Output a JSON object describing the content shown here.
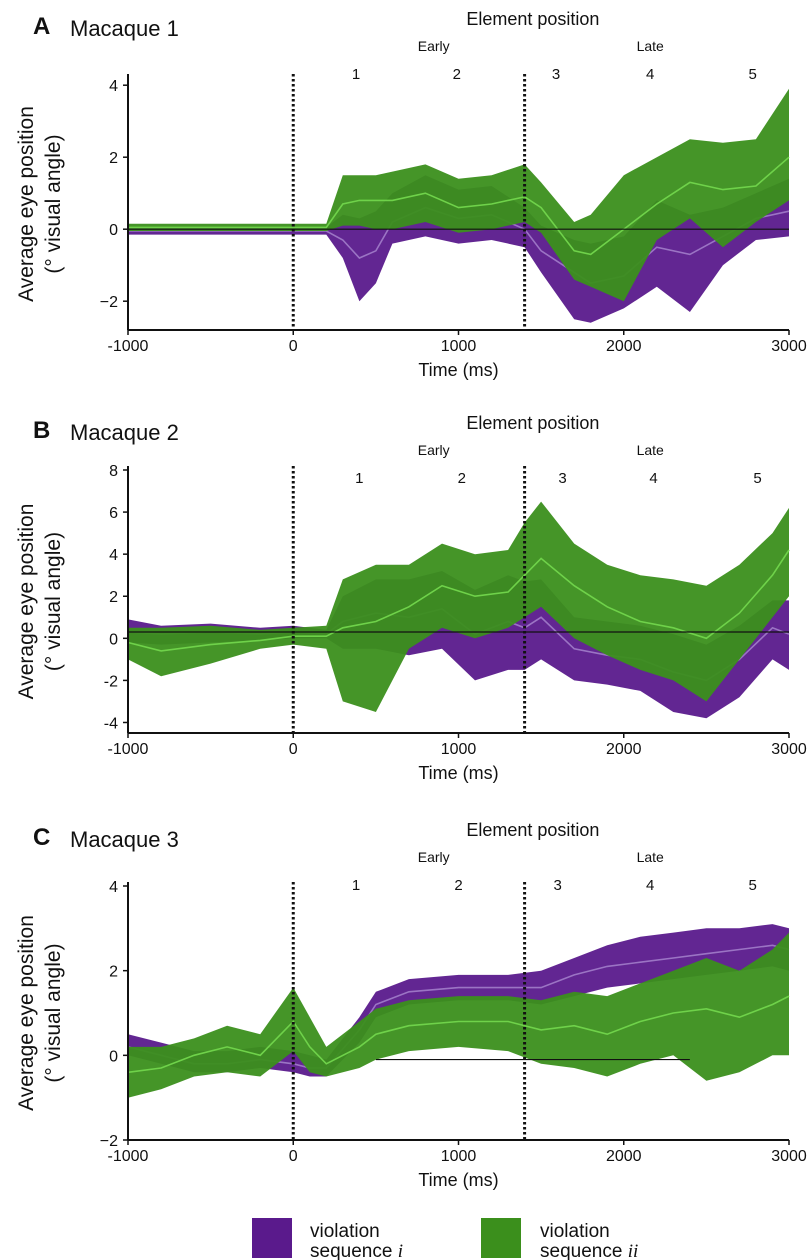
{
  "colors": {
    "violation_i_band": "#5a1a8c",
    "violation_i_line": "#9b74c4",
    "violation_ii_band": "#3b8f1c",
    "violation_ii_line": "#6fd24a",
    "axis": "#111111"
  },
  "legend": {
    "items": [
      {
        "label_line1": "violation",
        "label_line2_prefix": "sequence ",
        "label_line2_italic": "i",
        "color_key": "violation_i_band"
      },
      {
        "label_line1": "violation",
        "label_line2_prefix": "sequence ",
        "label_line2_italic": "ii",
        "color_key": "violation_ii_band"
      }
    ]
  },
  "chart_data": [
    {
      "type": "area",
      "panel_letter": "A",
      "title": "Macaque 1",
      "xlabel": "Time (ms)",
      "ylabel_line1": "Average eye position",
      "ylabel_line2": "(° visual angle)",
      "xlim": [
        -1000,
        3000
      ],
      "ylim": [
        -2.8,
        4.2
      ],
      "xticks": [
        -1000,
        0,
        1000,
        2000,
        3000
      ],
      "yticks": [
        4,
        2,
        0,
        -2
      ],
      "ytick_labels": [
        "4",
        "2",
        "0",
        "−2"
      ],
      "element_position_title": "Element position",
      "early_label": "Early",
      "late_label": "Late",
      "element_numbers": [
        "1",
        "2",
        "3",
        "4",
        "5"
      ],
      "element_centers_ms": [
        380,
        990,
        1590,
        2160,
        2780
      ],
      "dotted_lines_ms": [
        0,
        1400
      ],
      "baseline_y": 0,
      "series": [
        {
          "name": "violation sequence i",
          "x": [
            -1000,
            -500,
            0,
            200,
            300,
            400,
            500,
            600,
            800,
            1000,
            1200,
            1400,
            1500,
            1700,
            1800,
            2000,
            2200,
            2400,
            2600,
            2800,
            3000
          ],
          "mean": [
            -0.05,
            -0.05,
            -0.05,
            -0.05,
            -0.3,
            -0.8,
            -0.6,
            0.2,
            0.6,
            0.3,
            0.4,
            0.0,
            -0.6,
            -1.2,
            -1.5,
            -1.3,
            -0.5,
            -0.7,
            -0.2,
            0.3,
            0.5
          ],
          "lower": [
            -0.15,
            -0.15,
            -0.15,
            -0.15,
            -0.8,
            -2.0,
            -1.5,
            -0.4,
            -0.2,
            -0.4,
            -0.3,
            -0.5,
            -1.2,
            -2.5,
            -2.6,
            -2.2,
            -1.6,
            -2.3,
            -1.0,
            -0.3,
            -0.2
          ],
          "upper": [
            0.05,
            0.05,
            0.05,
            0.05,
            0.4,
            0.3,
            0.5,
            1.0,
            1.5,
            1.1,
            1.2,
            0.6,
            0.1,
            -0.3,
            -0.4,
            -0.2,
            0.8,
            0.4,
            0.6,
            1.0,
            1.4
          ]
        },
        {
          "name": "violation sequence ii",
          "x": [
            -1000,
            -500,
            0,
            200,
            300,
            400,
            500,
            600,
            800,
            1000,
            1200,
            1400,
            1500,
            1700,
            1800,
            2000,
            2200,
            2400,
            2600,
            2800,
            3000
          ],
          "mean": [
            0.05,
            0.05,
            0.05,
            0.05,
            0.7,
            0.8,
            0.8,
            0.8,
            1.0,
            0.6,
            0.7,
            0.9,
            0.6,
            -0.6,
            -0.7,
            0.0,
            0.7,
            1.3,
            1.1,
            1.2,
            2.0
          ],
          "lower": [
            -0.05,
            -0.05,
            -0.05,
            -0.05,
            0.1,
            0.1,
            0.0,
            0.0,
            0.2,
            -0.1,
            0.0,
            0.2,
            -0.1,
            -1.4,
            -1.6,
            -2.0,
            -0.3,
            0.3,
            -0.5,
            0.2,
            0.8
          ],
          "upper": [
            0.15,
            0.15,
            0.15,
            0.15,
            1.5,
            1.5,
            1.5,
            1.6,
            1.8,
            1.4,
            1.5,
            1.8,
            1.3,
            0.2,
            0.4,
            1.5,
            2.0,
            2.5,
            2.4,
            2.5,
            3.9
          ]
        }
      ]
    },
    {
      "type": "area",
      "panel_letter": "B",
      "title": "Macaque 2",
      "xlabel": "Time (ms)",
      "ylabel_line1": "Average eye position",
      "ylabel_line2": "(° visual angle)",
      "xlim": [
        -1000,
        3000
      ],
      "ylim": [
        -4.5,
        8
      ],
      "xticks": [
        -1000,
        0,
        1000,
        2000,
        3000
      ],
      "yticks": [
        8,
        6,
        4,
        2,
        0,
        -2,
        -4
      ],
      "ytick_labels": [
        "8",
        "6",
        "4",
        "2",
        "0",
        "-2",
        "-4"
      ],
      "element_position_title": "Element position",
      "early_label": "Early",
      "late_label": "Late",
      "element_numbers": [
        "1",
        "2",
        "3",
        "4",
        "5"
      ],
      "element_centers_ms": [
        400,
        1020,
        1630,
        2180,
        2810
      ],
      "dotted_lines_ms": [
        0,
        1400
      ],
      "baseline_y": 0.3,
      "series": [
        {
          "name": "violation sequence i",
          "x": [
            -1000,
            -800,
            -500,
            -200,
            0,
            200,
            300,
            500,
            700,
            900,
            1100,
            1300,
            1400,
            1500,
            1700,
            1900,
            2100,
            2300,
            2500,
            2700,
            2900,
            3000
          ],
          "mean": [
            0.3,
            0.2,
            0.3,
            0.2,
            0.3,
            0.2,
            0.8,
            1.2,
            1.0,
            1.4,
            0.2,
            0.8,
            0.5,
            1.0,
            -0.5,
            -0.8,
            -1.0,
            -1.6,
            -2.0,
            -1.0,
            0.5,
            0.2
          ],
          "lower": [
            -0.2,
            -0.3,
            -0.2,
            -0.1,
            0.0,
            0.0,
            -0.5,
            -0.5,
            -0.8,
            -0.5,
            -2.0,
            -1.5,
            -1.5,
            -1.0,
            -2.0,
            -2.2,
            -2.5,
            -3.5,
            -3.8,
            -2.8,
            -1.0,
            -1.5
          ],
          "upper": [
            0.9,
            0.6,
            0.7,
            0.5,
            0.6,
            0.4,
            2.0,
            2.8,
            2.8,
            3.2,
            2.3,
            3.0,
            2.7,
            2.8,
            1.0,
            0.8,
            0.6,
            0.2,
            -0.3,
            0.6,
            1.8,
            1.8
          ]
        },
        {
          "name": "violation sequence ii",
          "x": [
            -1000,
            -800,
            -500,
            -200,
            0,
            200,
            300,
            500,
            700,
            900,
            1100,
            1300,
            1400,
            1500,
            1700,
            1900,
            2100,
            2300,
            2500,
            2700,
            2900,
            3000
          ],
          "mean": [
            -0.2,
            -0.6,
            -0.3,
            -0.1,
            0.1,
            0.1,
            0.5,
            0.8,
            1.5,
            2.5,
            2.0,
            2.2,
            3.0,
            3.8,
            2.5,
            1.5,
            0.8,
            0.5,
            0.0,
            1.2,
            3.0,
            4.2
          ],
          "lower": [
            -1.0,
            -1.8,
            -1.2,
            -0.5,
            -0.3,
            -0.5,
            -3.0,
            -3.5,
            -0.5,
            0.5,
            0.0,
            0.5,
            1.0,
            1.5,
            0.0,
            -0.8,
            -1.5,
            -2.0,
            -3.0,
            -1.0,
            1.0,
            2.0
          ],
          "upper": [
            0.5,
            0.5,
            0.6,
            0.4,
            0.5,
            0.6,
            2.8,
            3.5,
            3.5,
            4.5,
            4.0,
            4.2,
            5.5,
            6.5,
            4.5,
            3.5,
            3.0,
            2.8,
            2.5,
            3.5,
            5.0,
            6.2
          ]
        }
      ]
    },
    {
      "type": "area",
      "panel_letter": "C",
      "title": "Macaque 3",
      "xlabel": "Time (ms)",
      "ylabel_line1": "Average eye position",
      "ylabel_line2": "(° visual angle)",
      "xlim": [
        -1000,
        3000
      ],
      "ylim": [
        -2,
        4
      ],
      "xticks": [
        -1000,
        0,
        1000,
        2000,
        3000
      ],
      "yticks": [
        4,
        2,
        0,
        -2
      ],
      "ytick_labels": [
        "4",
        "2",
        "0",
        "−2"
      ],
      "element_position_title": "Element position",
      "early_label": "Early",
      "late_label": "Late",
      "element_numbers": [
        "1",
        "2",
        "3",
        "4",
        "5"
      ],
      "element_centers_ms": [
        380,
        1000,
        1600,
        2160,
        2780
      ],
      "dotted_lines_ms": [
        0,
        1400
      ],
      "baseline_y": -0.1,
      "baseline_range_ms": [
        500,
        2400
      ],
      "series": [
        {
          "name": "violation sequence i",
          "x": [
            -1000,
            -800,
            -600,
            -400,
            -200,
            0,
            100,
            200,
            400,
            500,
            700,
            1000,
            1300,
            1500,
            1700,
            1900,
            2100,
            2300,
            2500,
            2700,
            2900,
            3000
          ],
          "mean": [
            0.2,
            0.0,
            -0.2,
            -0.2,
            -0.1,
            -0.2,
            -0.3,
            -0.3,
            0.6,
            1.2,
            1.5,
            1.6,
            1.6,
            1.6,
            1.9,
            2.1,
            2.2,
            2.3,
            2.4,
            2.5,
            2.6,
            2.5
          ],
          "lower": [
            0.0,
            -0.2,
            -0.4,
            -0.4,
            -0.3,
            -0.4,
            -0.5,
            -0.5,
            0.3,
            0.9,
            1.2,
            1.3,
            1.3,
            1.2,
            1.4,
            1.6,
            1.7,
            1.8,
            1.9,
            2.0,
            2.1,
            2.0
          ],
          "upper": [
            0.5,
            0.3,
            0.1,
            0.1,
            0.2,
            0.1,
            0.0,
            -0.1,
            0.9,
            1.5,
            1.8,
            1.9,
            1.9,
            2.0,
            2.3,
            2.6,
            2.8,
            2.9,
            3.0,
            3.0,
            3.1,
            3.0
          ]
        },
        {
          "name": "violation sequence ii",
          "x": [
            -1000,
            -800,
            -600,
            -400,
            -200,
            0,
            100,
            200,
            400,
            500,
            700,
            1000,
            1300,
            1500,
            1700,
            1900,
            2100,
            2300,
            2500,
            2700,
            2900,
            3000
          ],
          "mean": [
            -0.4,
            -0.3,
            0.0,
            0.2,
            0.0,
            0.8,
            0.2,
            -0.2,
            0.2,
            0.5,
            0.7,
            0.8,
            0.8,
            0.6,
            0.7,
            0.5,
            0.8,
            1.0,
            1.1,
            0.9,
            1.2,
            1.4
          ],
          "lower": [
            -1.0,
            -0.8,
            -0.5,
            -0.4,
            -0.5,
            0.1,
            -0.4,
            -0.5,
            -0.3,
            -0.1,
            0.1,
            0.2,
            0.1,
            -0.2,
            -0.3,
            -0.5,
            -0.2,
            0.0,
            -0.6,
            -0.4,
            0.0,
            0.0
          ],
          "upper": [
            0.2,
            0.2,
            0.4,
            0.7,
            0.5,
            1.6,
            0.9,
            0.2,
            0.8,
            1.1,
            1.3,
            1.4,
            1.4,
            1.3,
            1.5,
            1.4,
            1.7,
            2.0,
            2.3,
            2.0,
            2.5,
            2.9
          ]
        }
      ]
    }
  ]
}
